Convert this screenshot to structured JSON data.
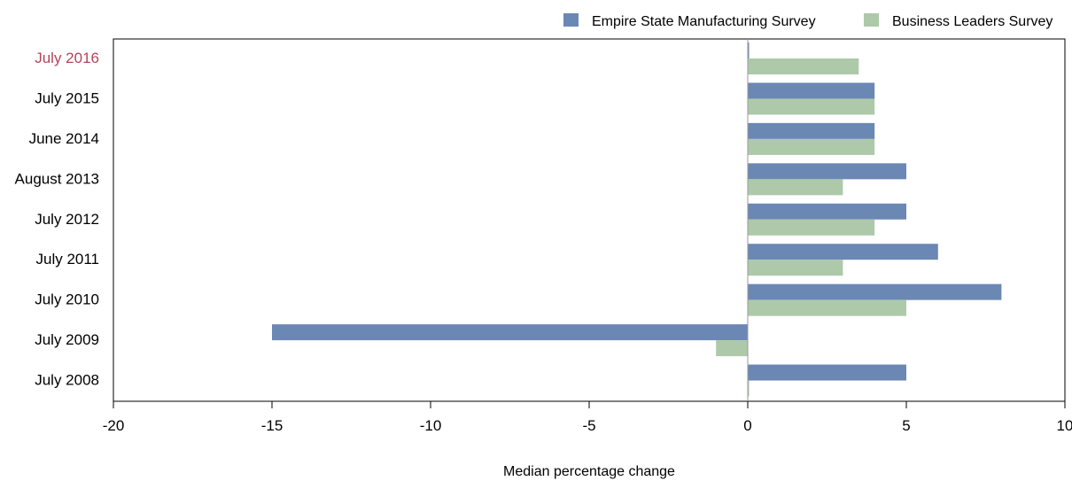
{
  "chart_data": {
    "type": "bar",
    "orientation": "horizontal",
    "categories": [
      "July 2016",
      "July 2015",
      "June 2014",
      "August 2013",
      "July 2012",
      "July 2011",
      "July 2010",
      "July 2009",
      "July 2008"
    ],
    "highlight_category": "July 2016",
    "highlight_color": "#b5435a",
    "series": [
      {
        "name": "Empire State Manufacturing Survey",
        "color": "#6b88b4",
        "values": [
          0,
          4,
          4,
          5,
          5,
          6,
          8,
          -15,
          5
        ]
      },
      {
        "name": "Business Leaders Survey",
        "color": "#adc9aa",
        "values": [
          3.5,
          4,
          4,
          3,
          4,
          3,
          5,
          -1,
          0
        ]
      }
    ],
    "xlabel": "Median percentage change",
    "xlim": [
      -20,
      10
    ],
    "xticks": [
      -20,
      -15,
      -10,
      -5,
      0,
      5,
      10
    ],
    "legend_position": "top-right",
    "grid": false
  }
}
